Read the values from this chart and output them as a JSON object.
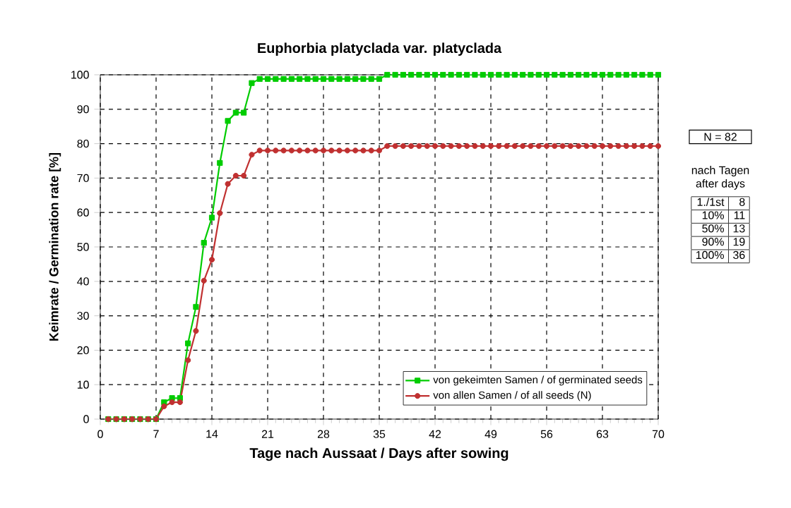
{
  "chart_data": {
    "type": "line",
    "title": "Euphorbia platyclada var. platyclada",
    "xlabel": "Tage nach Aussaat / Days after sowing",
    "ylabel": "Keimrate / Germination rate [%]",
    "x": [
      1,
      2,
      3,
      4,
      5,
      6,
      7,
      8,
      9,
      10,
      11,
      12,
      13,
      14,
      15,
      16,
      17,
      18,
      19,
      20,
      21,
      22,
      23,
      24,
      25,
      26,
      27,
      28,
      29,
      30,
      31,
      32,
      33,
      34,
      35,
      36,
      37,
      38,
      39,
      40,
      41,
      42,
      43,
      44,
      45,
      46,
      47,
      48,
      49,
      50,
      51,
      52,
      53,
      54,
      55,
      56,
      57,
      58,
      59,
      60,
      61,
      62,
      63,
      64,
      65,
      66,
      67,
      68,
      69,
      70
    ],
    "series": [
      {
        "name": "von gekeimten Samen / of germinated seeds",
        "color": "#00cc00",
        "marker": "square",
        "values": [
          0,
          0,
          0,
          0,
          0,
          0,
          0,
          4.9,
          6.1,
          6.1,
          22,
          32.6,
          51.2,
          58.5,
          74.4,
          86.6,
          89,
          89,
          97.6,
          98.8,
          98.8,
          98.8,
          98.8,
          98.8,
          98.8,
          98.8,
          98.8,
          98.8,
          98.8,
          98.8,
          98.8,
          98.8,
          98.8,
          98.8,
          98.8,
          100,
          100,
          100,
          100,
          100,
          100,
          100,
          100,
          100,
          100,
          100,
          100,
          100,
          100,
          100,
          100,
          100,
          100,
          100,
          100,
          100,
          100,
          100,
          100,
          100,
          100,
          100,
          100,
          100,
          100,
          100,
          100,
          100,
          100,
          100
        ]
      },
      {
        "name": "von allen Samen / of all seeds (N)",
        "color": "#c03030",
        "marker": "circle",
        "values": [
          0,
          0,
          0,
          0,
          0,
          0,
          0,
          3.7,
          4.9,
          4.9,
          17.1,
          25.6,
          40.2,
          46.3,
          59.8,
          68.3,
          70.7,
          70.7,
          76.8,
          78,
          78,
          78,
          78,
          78,
          78,
          78,
          78,
          78,
          78,
          78,
          78,
          78,
          78,
          78,
          78,
          79.3,
          79.3,
          79.3,
          79.3,
          79.3,
          79.3,
          79.3,
          79.3,
          79.3,
          79.3,
          79.3,
          79.3,
          79.3,
          79.3,
          79.3,
          79.3,
          79.3,
          79.3,
          79.3,
          79.3,
          79.3,
          79.3,
          79.3,
          79.3,
          79.3,
          79.3,
          79.3,
          79.3,
          79.3,
          79.3,
          79.3,
          79.3,
          79.3,
          79.3,
          79.3
        ]
      }
    ],
    "xlim": [
      0,
      70
    ],
    "xticks": [
      0,
      7,
      14,
      21,
      28,
      35,
      42,
      49,
      56,
      63,
      70
    ],
    "ylim": [
      0,
      100
    ],
    "yticks": [
      0,
      10,
      20,
      30,
      40,
      50,
      60,
      70,
      80,
      90,
      100
    ],
    "grid": true,
    "legend": "bottom right",
    "annotations": [
      "N = 82",
      "nach Tagen",
      "after days",
      "1./1st",
      "8",
      "10%",
      "11",
      "50%",
      "13",
      "90%",
      "19",
      "100%",
      "36"
    ]
  }
}
